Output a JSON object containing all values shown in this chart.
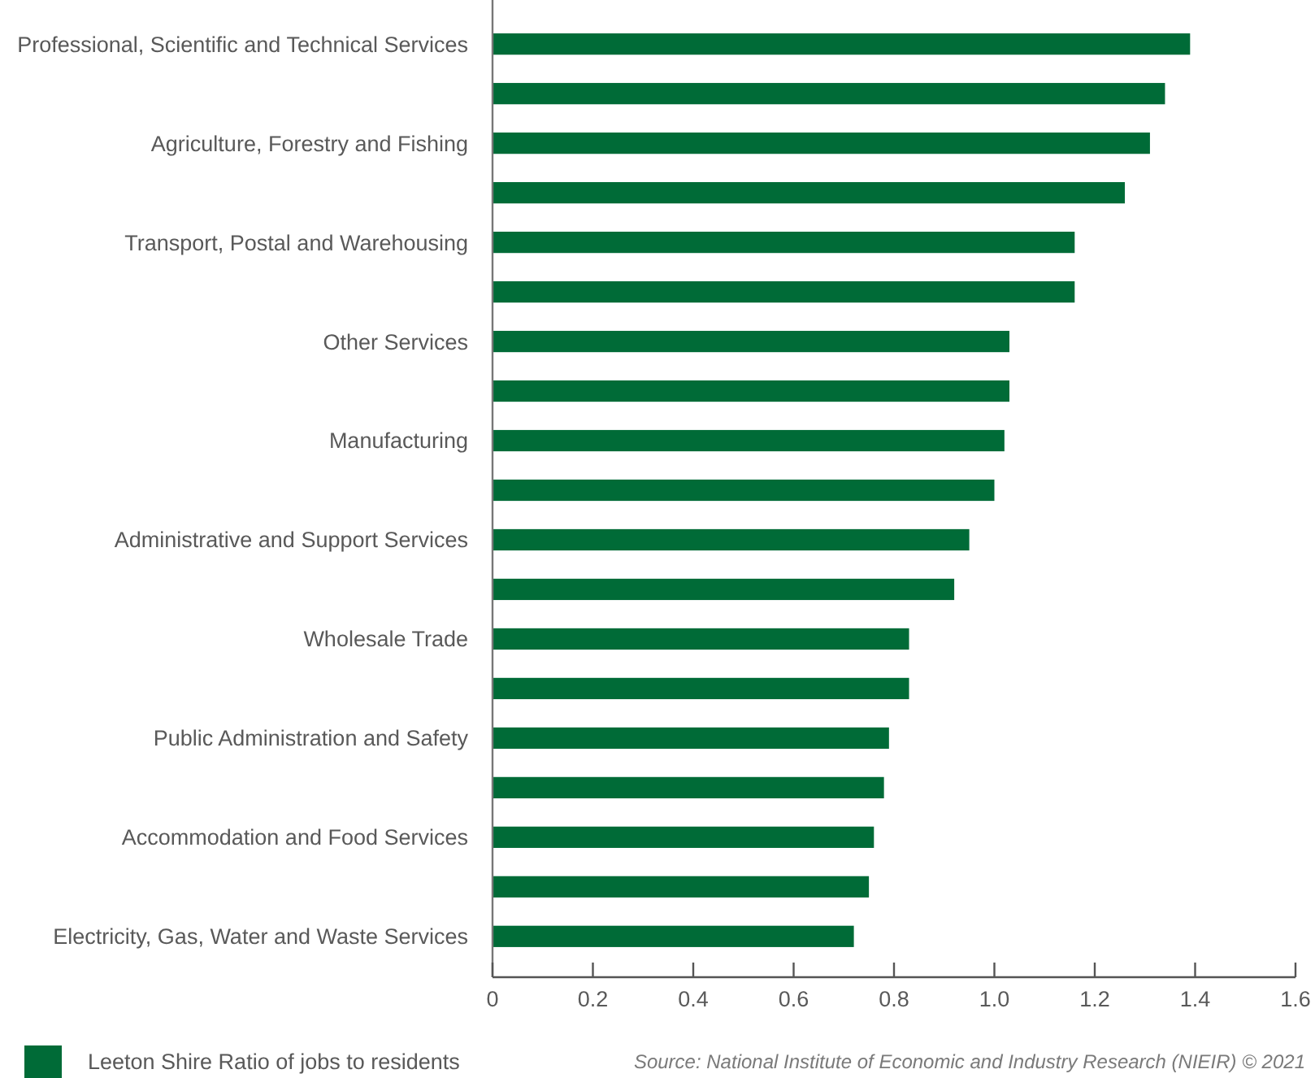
{
  "chart_data": {
    "type": "bar",
    "orientation": "horizontal",
    "categories": [
      "Professional, Scientific and Technical Services",
      null,
      "Agriculture, Forestry and Fishing",
      null,
      "Transport, Postal and Warehousing",
      null,
      "Other Services",
      null,
      "Manufacturing",
      null,
      "Administrative and Support Services",
      null,
      "Wholesale Trade",
      null,
      "Public Administration and Safety",
      null,
      "Accommodation and Food Services",
      null,
      "Electricity, Gas, Water and Waste Services"
    ],
    "series": [
      {
        "name": "Leeton Shire Ratio of jobs to residents",
        "color": "#006b37",
        "values": [
          1.39,
          1.34,
          1.31,
          1.26,
          1.16,
          1.16,
          1.03,
          1.03,
          1.02,
          1.0,
          0.95,
          0.92,
          0.83,
          0.83,
          0.79,
          0.78,
          0.76,
          0.75,
          0.72
        ]
      }
    ],
    "xlim": [
      0,
      1.6
    ],
    "xticks": [
      0,
      0.2,
      0.4,
      0.6,
      0.8,
      {
        "value": 1,
        "label": "1.0"
      },
      1.2,
      1.4,
      1.6
    ],
    "legend": "bottom left",
    "annotations": [
      "Source: National Institute of Economic and Industry Research (NIEIR) © 2021"
    ]
  }
}
